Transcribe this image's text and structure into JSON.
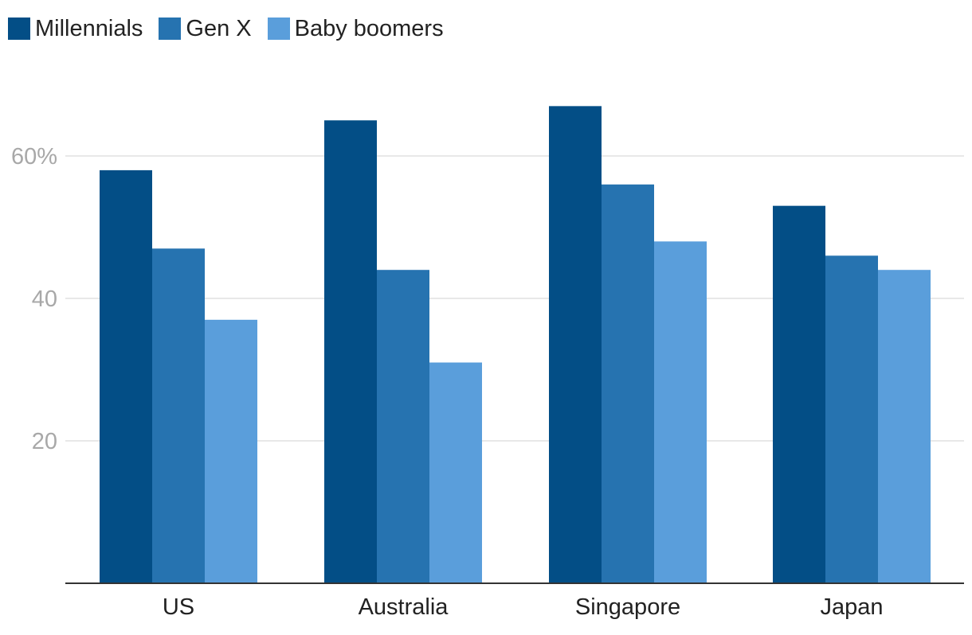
{
  "chart_data": {
    "type": "bar",
    "title": "",
    "xlabel": "",
    "ylabel": "",
    "categories": [
      "US",
      "Australia",
      "Singapore",
      "Japan"
    ],
    "series": [
      {
        "name": "Millennials",
        "color": "#034e86",
        "values": [
          58,
          65,
          67,
          53
        ]
      },
      {
        "name": "Gen X",
        "color": "#2673b0",
        "values": [
          47,
          44,
          56,
          46
        ]
      },
      {
        "name": "Baby boomers",
        "color": "#5a9edb",
        "values": [
          37,
          31,
          48,
          44
        ]
      }
    ],
    "ylim": [
      0,
      70
    ],
    "yticks": [
      {
        "value": 20,
        "label": "20"
      },
      {
        "value": 40,
        "label": "40"
      },
      {
        "value": 60,
        "label": "60%"
      }
    ],
    "grid": true,
    "legend_position": "top-left"
  }
}
